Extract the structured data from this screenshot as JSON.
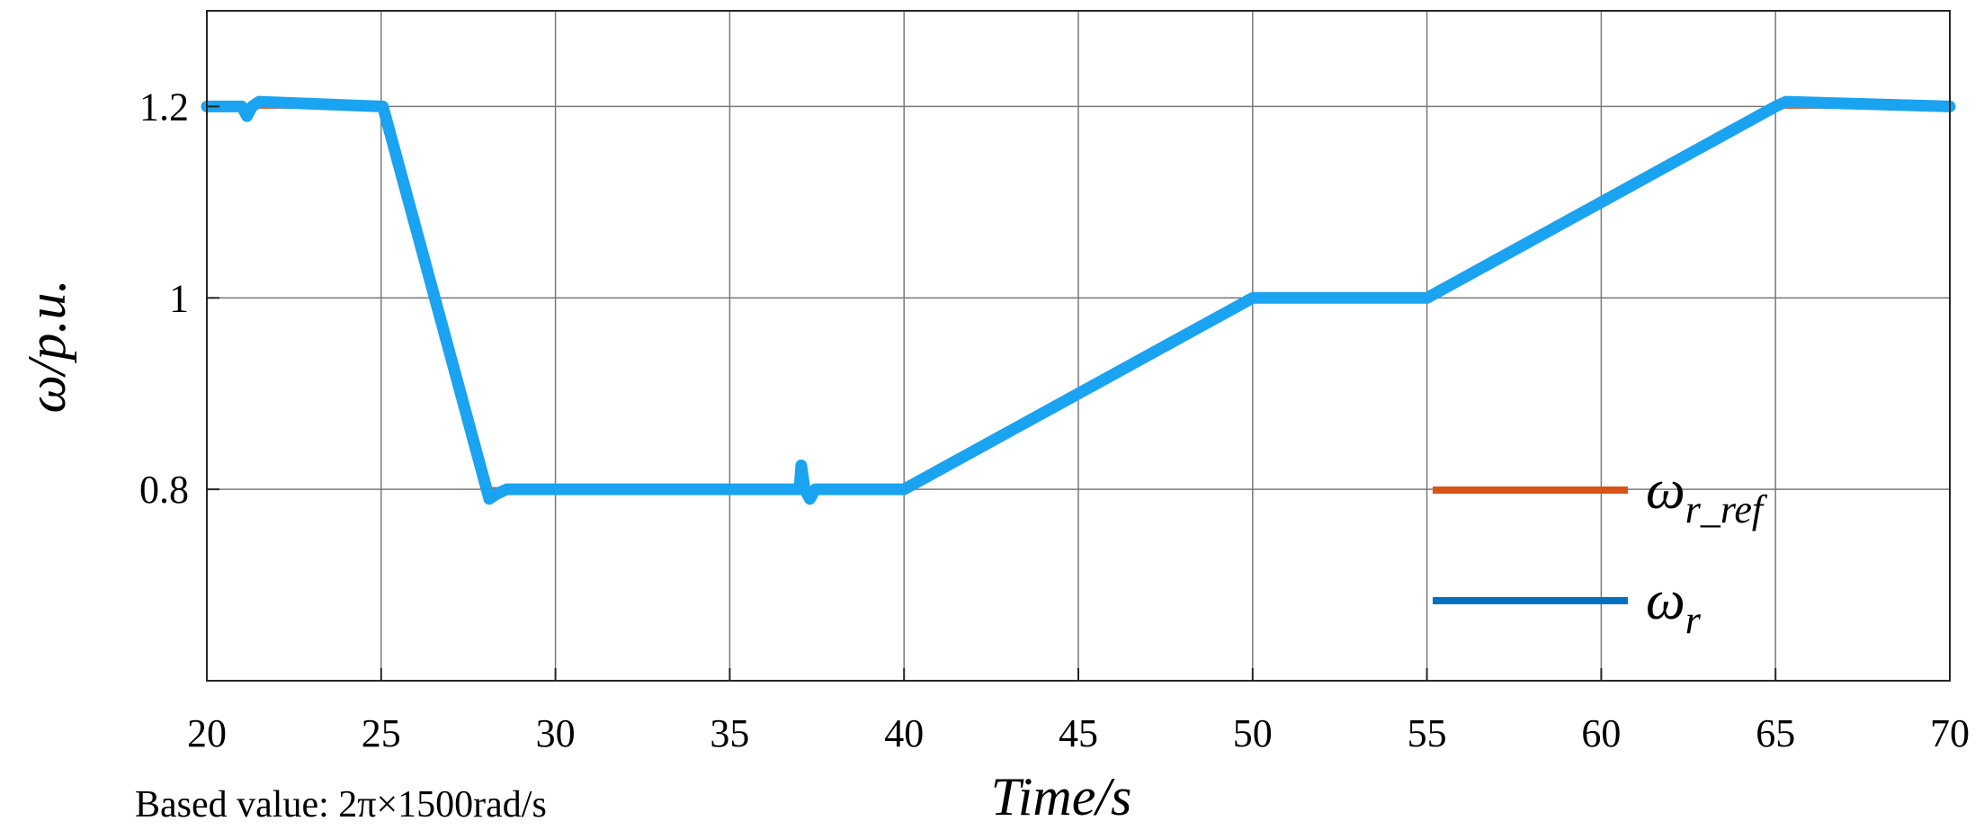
{
  "chart_data": {
    "type": "line",
    "xlabel": "Time/s",
    "ylabel": "ω/p.u.",
    "xlim": [
      20,
      70
    ],
    "ylim": [
      0.6,
      1.3
    ],
    "xticks": [
      20,
      25,
      30,
      35,
      40,
      45,
      50,
      55,
      60,
      65,
      70
    ],
    "yticks": [
      0.8,
      1,
      1.2
    ],
    "ytick_labels": [
      "0.8",
      "1",
      "1.2"
    ],
    "grid": true,
    "legend_position": "bottom-right",
    "series": [
      {
        "name": "ω",
        "subscript": "r_ref",
        "color": "#D95319",
        "x": [
          20,
          25,
          28,
          28.2,
          40,
          50,
          55,
          65,
          70
        ],
        "y": [
          1.2,
          1.2,
          0.8,
          0.8,
          0.8,
          1.0,
          1.0,
          1.2,
          1.2
        ]
      },
      {
        "name": "ω",
        "subscript": "r",
        "color": "#1AA3F0",
        "x": [
          20,
          21,
          21.15,
          21.3,
          21.5,
          25,
          25.05,
          28.1,
          28.3,
          28.6,
          37.0,
          37.05,
          37.15,
          37.3,
          37.45,
          37.6,
          40,
          50,
          55,
          65,
          65.3,
          70
        ],
        "y": [
          1.2,
          1.2,
          1.19,
          1.2,
          1.205,
          1.2,
          1.2,
          0.79,
          0.795,
          0.8,
          0.8,
          0.825,
          0.8,
          0.79,
          0.8,
          0.8,
          0.8,
          1.0,
          1.0,
          1.2,
          1.205,
          1.2
        ]
      }
    ],
    "annotation": "Based value: 2π×1500rad/s"
  }
}
